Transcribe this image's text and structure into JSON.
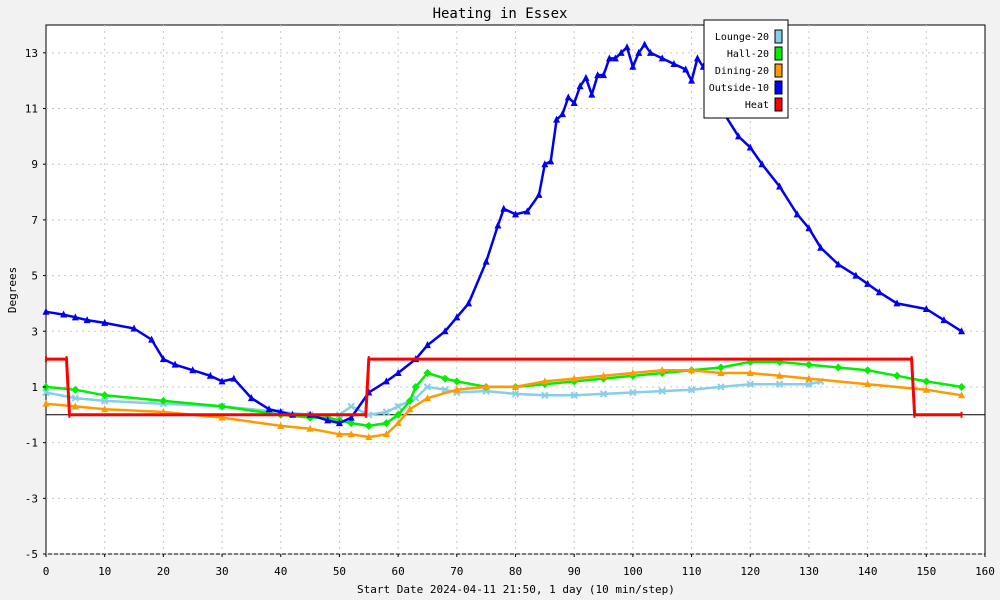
{
  "chart_data": {
    "type": "line",
    "title": "Heating in Essex",
    "xlabel": "Start Date 2024-04-11 21:50, 1 day (10 min/step)",
    "ylabel": "Degrees",
    "xlim": [
      0,
      160
    ],
    "ylim": [
      -5,
      14
    ],
    "x_ticks": [
      0,
      10,
      20,
      30,
      40,
      50,
      60,
      70,
      80,
      90,
      100,
      110,
      120,
      130,
      140,
      150,
      160
    ],
    "y_ticks": [
      -5,
      -3,
      -1,
      1,
      3,
      5,
      7,
      9,
      11,
      13
    ],
    "grid": true,
    "legend_position": "top-right",
    "series": [
      {
        "name": "Lounge-20",
        "color": "#87ceeb",
        "marker": "x",
        "x": [
          0,
          5,
          10,
          20,
          30,
          40,
          45,
          50,
          52,
          55,
          58,
          60,
          63,
          65,
          68,
          70,
          75,
          80,
          85,
          90,
          95,
          100,
          105,
          110,
          115,
          120,
          125,
          130,
          132
        ],
        "y": [
          0.8,
          0.6,
          0.5,
          0.4,
          0.3,
          0.1,
          0.0,
          0.0,
          0.3,
          0.0,
          0.1,
          0.3,
          0.6,
          1.0,
          0.9,
          0.8,
          0.85,
          0.75,
          0.7,
          0.7,
          0.75,
          0.8,
          0.85,
          0.9,
          1.0,
          1.1,
          1.1,
          1.1,
          1.2
        ]
      },
      {
        "name": "Hall-20",
        "color": "#00ee00",
        "marker": "diamond",
        "x": [
          0,
          5,
          10,
          20,
          30,
          40,
          45,
          48,
          50,
          52,
          55,
          58,
          60,
          62,
          63,
          65,
          68,
          70,
          75,
          80,
          85,
          90,
          95,
          100,
          105,
          110,
          115,
          120,
          125,
          130,
          135,
          140,
          145,
          150,
          156
        ],
        "y": [
          1.0,
          0.9,
          0.7,
          0.5,
          0.3,
          0.0,
          -0.1,
          -0.1,
          -0.2,
          -0.3,
          -0.4,
          -0.3,
          0.0,
          0.5,
          1.0,
          1.5,
          1.3,
          1.2,
          1.0,
          1.0,
          1.1,
          1.2,
          1.3,
          1.4,
          1.5,
          1.6,
          1.7,
          1.9,
          1.9,
          1.8,
          1.7,
          1.6,
          1.4,
          1.2,
          1.0
        ]
      },
      {
        "name": "Dining-20",
        "color": "#ff9900",
        "marker": "triangle",
        "x": [
          0,
          5,
          10,
          20,
          30,
          40,
          45,
          50,
          52,
          55,
          58,
          60,
          62,
          65,
          70,
          75,
          80,
          85,
          90,
          95,
          100,
          105,
          110,
          115,
          120,
          125,
          130,
          140,
          150,
          156
        ],
        "y": [
          0.4,
          0.3,
          0.2,
          0.1,
          -0.1,
          -0.4,
          -0.5,
          -0.7,
          -0.7,
          -0.8,
          -0.7,
          -0.3,
          0.2,
          0.6,
          0.9,
          1.0,
          1.0,
          1.2,
          1.3,
          1.4,
          1.5,
          1.6,
          1.6,
          1.5,
          1.5,
          1.4,
          1.3,
          1.1,
          0.9,
          0.7
        ]
      },
      {
        "name": "Outside-10",
        "color": "#0000ee",
        "marker": "triangle",
        "x": [
          0,
          3,
          5,
          7,
          10,
          15,
          18,
          20,
          22,
          25,
          28,
          30,
          32,
          35,
          38,
          40,
          42,
          45,
          48,
          50,
          52,
          55,
          58,
          60,
          63,
          65,
          68,
          70,
          72,
          75,
          77,
          78,
          80,
          82,
          84,
          85,
          86,
          87,
          88,
          89,
          90,
          91,
          92,
          93,
          94,
          95,
          96,
          97,
          98,
          99,
          100,
          101,
          102,
          103,
          105,
          107,
          109,
          110,
          111,
          112,
          115,
          118,
          120,
          122,
          125,
          128,
          130,
          132,
          135,
          138,
          140,
          142,
          145,
          150,
          153,
          156
        ],
        "y": [
          3.7,
          3.6,
          3.5,
          3.4,
          3.3,
          3.1,
          2.7,
          2.0,
          1.8,
          1.6,
          1.4,
          1.2,
          1.3,
          0.6,
          0.2,
          0.1,
          0.0,
          0.0,
          -0.2,
          -0.3,
          -0.1,
          0.8,
          1.2,
          1.5,
          2.0,
          2.5,
          3.0,
          3.5,
          4.0,
          5.5,
          6.8,
          7.4,
          7.2,
          7.3,
          7.9,
          9.0,
          9.1,
          10.6,
          10.8,
          11.4,
          11.2,
          11.8,
          12.1,
          11.5,
          12.2,
          12.2,
          12.8,
          12.8,
          13.0,
          13.2,
          12.5,
          13.0,
          13.3,
          13.0,
          12.8,
          12.6,
          12.4,
          12.0,
          12.8,
          12.5,
          11.0,
          10.0,
          9.6,
          9.0,
          8.2,
          7.2,
          6.7,
          6.0,
          5.4,
          5.0,
          4.7,
          4.4,
          4.0,
          3.8,
          3.4,
          3.0
        ]
      },
      {
        "name": "Heat",
        "color": "#ff0000",
        "marker": "tick",
        "step": true,
        "x": [
          0,
          3.5,
          4,
          54.5,
          55,
          147.5,
          148,
          156
        ],
        "y": [
          2.0,
          2.0,
          0.0,
          0.0,
          2.0,
          2.0,
          0.0,
          0.0
        ]
      }
    ]
  }
}
